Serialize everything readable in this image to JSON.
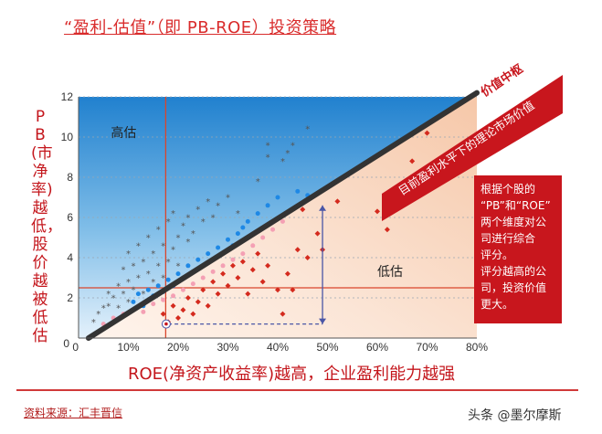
{
  "header": {
    "title": "“盈利-估值”（即 PB-ROE）投资策略"
  },
  "footer": {
    "source": "资料来源：汇丰晋信",
    "credit": "头条 @墨尔摩斯"
  },
  "chart_data": {
    "type": "scatter",
    "title": "“盈利-估值”（即 PB-ROE）投资策略",
    "xlabel": "ROE(净资产收益率)越高，企业盈利能力越强",
    "ylabel": "PB(市净率)越低，股价越被低估",
    "xlim": [
      0,
      80
    ],
    "ylim": [
      0,
      12
    ],
    "x_ticks": [
      "0",
      "10%",
      "20%",
      "30%",
      "40%",
      "50%",
      "60%",
      "70%",
      "80%"
    ],
    "y_ticks": [
      "0",
      "2",
      "4",
      "6",
      "8",
      "10",
      "12"
    ],
    "reference_lines": {
      "vertical_x": 17.5,
      "horizontal_y": 2.5
    },
    "value_line": {
      "label": "价值中枢",
      "x": [
        2,
        80
      ],
      "y": [
        0,
        12.2
      ]
    },
    "band_label": "目前盈利水平下的理论市场价值",
    "region_labels": {
      "overvalued": "高估",
      "undervalued": "低估"
    },
    "annotation": "根据个股的“PB”和“ROE”两个维度对公司进行综合评分。评分越高的公司，投资价值更大。",
    "series": [
      {
        "color": "#555555",
        "marker": "star",
        "points": [
          [
            3,
            0.8
          ],
          [
            4,
            1.2
          ],
          [
            5,
            1.5
          ],
          [
            6,
            1.6
          ],
          [
            6,
            2.2
          ],
          [
            7,
            2.0
          ],
          [
            8,
            1.5
          ],
          [
            8,
            2.6
          ],
          [
            9,
            2.2
          ],
          [
            9,
            3.4
          ],
          [
            10,
            1.8
          ],
          [
            10,
            2.8
          ],
          [
            10,
            4.2
          ],
          [
            11,
            2.4
          ],
          [
            11,
            3.6
          ],
          [
            12,
            3.0
          ],
          [
            12,
            4.6
          ],
          [
            13,
            2.2
          ],
          [
            13,
            3.8
          ],
          [
            14,
            3.2
          ],
          [
            14,
            5.0
          ],
          [
            15,
            2.8
          ],
          [
            15,
            4.2
          ],
          [
            16,
            3.6
          ],
          [
            16,
            5.4
          ],
          [
            17,
            3.0
          ],
          [
            17,
            4.6
          ],
          [
            18,
            5.8
          ],
          [
            18,
            3.8
          ],
          [
            19,
            4.4
          ],
          [
            19,
            6.2
          ],
          [
            20,
            5.0
          ],
          [
            20,
            3.6
          ],
          [
            21,
            5.6
          ],
          [
            22,
            4.8
          ],
          [
            22,
            6.0
          ],
          [
            23,
            5.2
          ],
          [
            24,
            6.4
          ],
          [
            25,
            5.8
          ],
          [
            26,
            6.8
          ],
          [
            27,
            6.0
          ],
          [
            28,
            6.6
          ],
          [
            30,
            7.0
          ],
          [
            32,
            6.2
          ],
          [
            36,
            7.8
          ],
          [
            38,
            9.0
          ],
          [
            38,
            9.6
          ],
          [
            41,
            8.8
          ],
          [
            42,
            9.2
          ],
          [
            43,
            9.6
          ],
          [
            46,
            10.4
          ],
          [
            50,
            7.4
          ]
        ]
      },
      {
        "color": "#1e88e5",
        "marker": "dot",
        "points": [
          [
            11,
            1.8
          ],
          [
            12,
            2.2
          ],
          [
            13,
            1.6
          ],
          [
            14,
            2.4
          ],
          [
            15,
            2.1
          ],
          [
            16,
            2.6
          ],
          [
            17,
            2.3
          ],
          [
            18,
            2.9
          ],
          [
            19,
            2.6
          ],
          [
            20,
            3.2
          ],
          [
            21,
            3.0
          ],
          [
            22,
            3.6
          ],
          [
            23,
            3.3
          ],
          [
            24,
            3.9
          ],
          [
            25,
            3.6
          ],
          [
            26,
            4.2
          ],
          [
            27,
            3.9
          ],
          [
            28,
            4.5
          ],
          [
            29,
            4.2
          ],
          [
            30,
            4.9
          ],
          [
            31,
            4.6
          ],
          [
            32,
            5.2
          ],
          [
            33,
            5.5
          ],
          [
            34,
            5.8
          ],
          [
            36,
            6.2
          ],
          [
            38,
            6.6
          ],
          [
            40,
            7.0
          ],
          [
            44,
            7.3
          ],
          [
            46,
            7.1
          ]
        ]
      },
      {
        "color": "#f4a0b4",
        "marker": "dot",
        "points": [
          [
            5,
            0.7
          ],
          [
            7,
            1.0
          ],
          [
            9,
            1.2
          ],
          [
            11,
            1.4
          ],
          [
            13,
            1.3
          ],
          [
            15,
            1.7
          ],
          [
            17,
            1.9
          ],
          [
            19,
            2.1
          ],
          [
            21,
            2.4
          ],
          [
            23,
            2.7
          ],
          [
            25,
            3.0
          ],
          [
            27,
            3.3
          ],
          [
            29,
            3.6
          ],
          [
            31,
            3.9
          ],
          [
            33,
            4.2
          ],
          [
            35,
            4.6
          ],
          [
            37,
            5.0
          ],
          [
            39,
            5.4
          ],
          [
            41,
            5.8
          ]
        ]
      },
      {
        "color": "#d42a1e",
        "marker": "diamond",
        "points": [
          [
            17,
            1.2
          ],
          [
            18,
            0.8
          ],
          [
            19,
            1.6
          ],
          [
            20,
            1.0
          ],
          [
            21,
            1.4
          ],
          [
            22,
            2.0
          ],
          [
            23,
            1.2
          ],
          [
            24,
            1.8
          ],
          [
            25,
            2.4
          ],
          [
            26,
            1.6
          ],
          [
            27,
            2.8
          ],
          [
            28,
            2.2
          ],
          [
            29,
            3.2
          ],
          [
            30,
            2.6
          ],
          [
            31,
            3.6
          ],
          [
            32,
            3.0
          ],
          [
            33,
            3.8
          ],
          [
            34,
            2.2
          ],
          [
            35,
            3.4
          ],
          [
            36,
            4.2
          ],
          [
            37,
            2.8
          ],
          [
            38,
            3.6
          ],
          [
            40,
            2.4
          ],
          [
            41,
            1.2
          ],
          [
            42,
            3.2
          ],
          [
            43,
            2.4
          ],
          [
            44,
            4.4
          ],
          [
            45,
            6.4
          ],
          [
            46,
            4.0
          ],
          [
            48,
            5.2
          ],
          [
            49,
            4.4
          ],
          [
            52,
            6.8
          ],
          [
            60,
            6.3
          ],
          [
            62,
            5.4
          ],
          [
            67,
            8.8
          ],
          [
            70,
            10.2
          ]
        ]
      }
    ]
  }
}
